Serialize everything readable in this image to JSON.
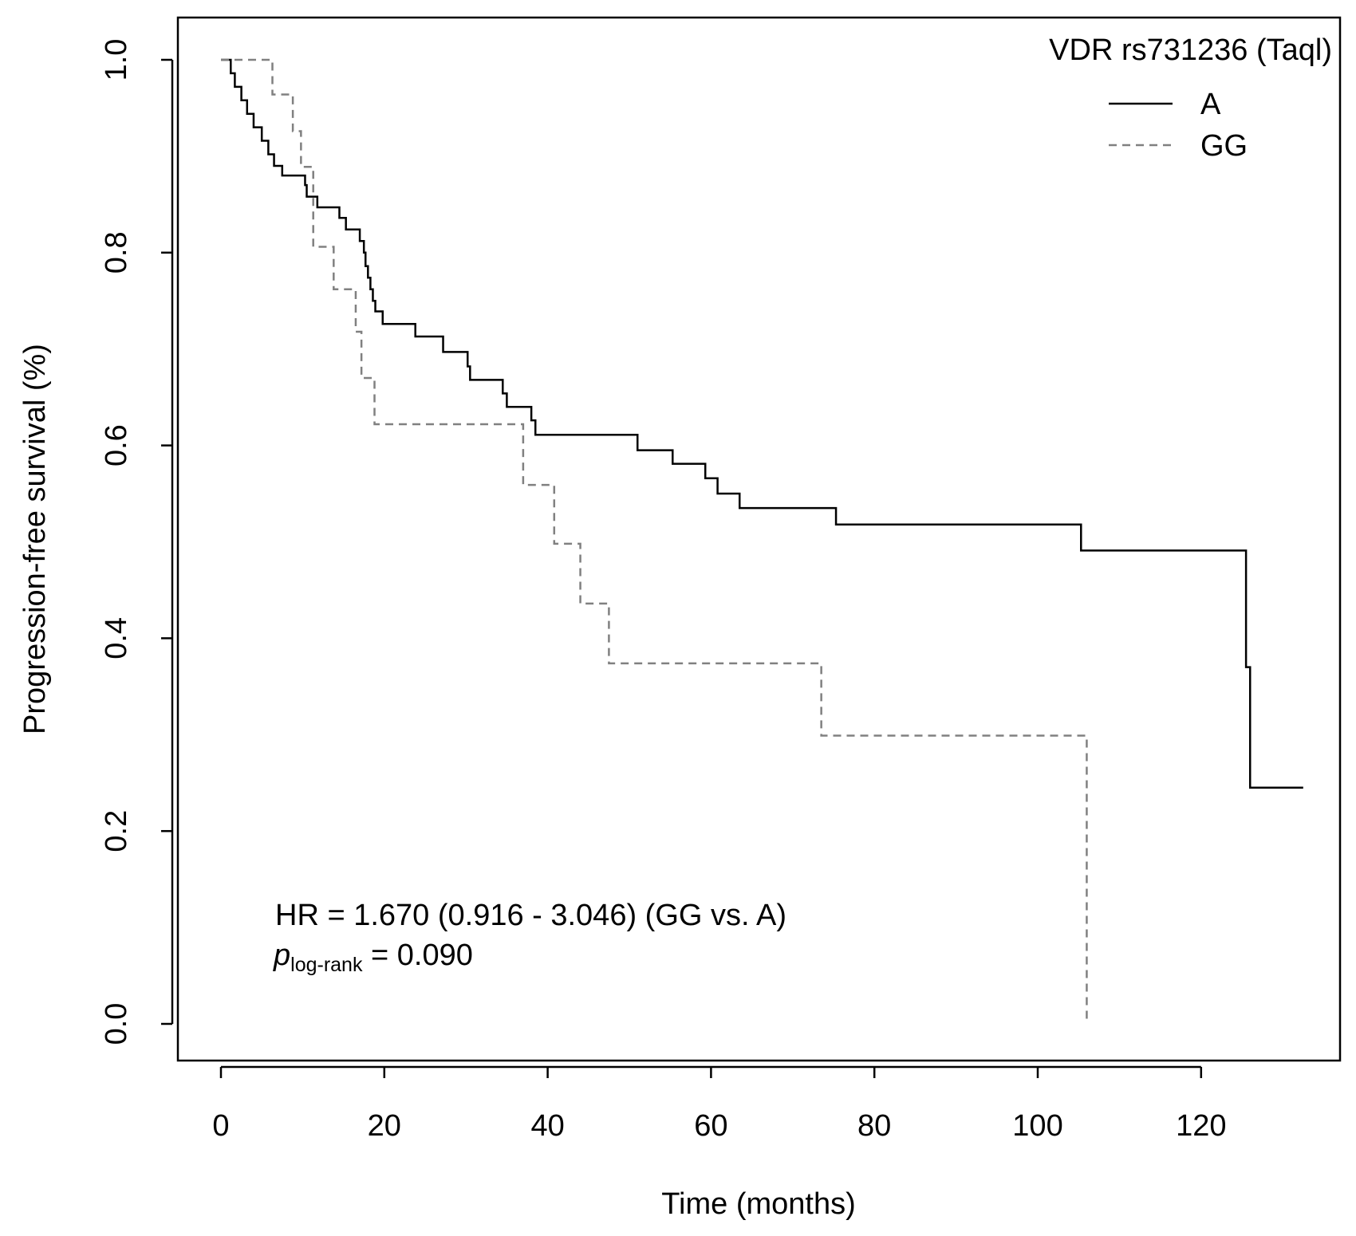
{
  "chart_data": {
    "type": "line",
    "step": true,
    "xlabel": "Time (months)",
    "ylabel": "Progression-free survival (%)",
    "xlim": [
      0,
      135
    ],
    "ylim": [
      0,
      1
    ],
    "xticks": [
      0,
      20,
      40,
      60,
      80,
      100,
      120
    ],
    "yticks": [
      0.0,
      0.2,
      0.4,
      0.6,
      0.8,
      1.0
    ],
    "xtick_labels": [
      "0",
      "20",
      "40",
      "60",
      "80",
      "100",
      "120"
    ],
    "ytick_labels": [
      "0.0",
      "0.2",
      "0.4",
      "0.6",
      "0.8",
      "1.0"
    ],
    "legend": {
      "title": "VDR rs731236 (Taql)",
      "placement": "top-right"
    },
    "annotation": {
      "hr": "HR = 1.670 (0.916 - 3.046) (GG vs. A)",
      "p_symbol": "p",
      "p_subscript": "log-rank",
      "p_value": " = 0.090"
    },
    "series": [
      {
        "name": "A",
        "style": "solid",
        "color": "#000000",
        "points": [
          [
            0,
            1.0
          ],
          [
            1.2,
            0.986
          ],
          [
            1.7,
            0.972
          ],
          [
            2.5,
            0.958
          ],
          [
            3.2,
            0.944
          ],
          [
            4.0,
            0.93
          ],
          [
            5.0,
            0.916
          ],
          [
            5.8,
            0.902
          ],
          [
            6.5,
            0.89
          ],
          [
            7.5,
            0.88
          ],
          [
            10.3,
            0.87
          ],
          [
            10.5,
            0.858
          ],
          [
            11.8,
            0.847
          ],
          [
            14.5,
            0.836
          ],
          [
            15.3,
            0.824
          ],
          [
            17.0,
            0.812
          ],
          [
            17.5,
            0.8
          ],
          [
            17.7,
            0.786
          ],
          [
            18.0,
            0.774
          ],
          [
            18.3,
            0.762
          ],
          [
            18.6,
            0.75
          ],
          [
            18.9,
            0.739
          ],
          [
            19.8,
            0.726
          ],
          [
            23.8,
            0.713
          ],
          [
            27.2,
            0.697
          ],
          [
            30.2,
            0.682
          ],
          [
            30.5,
            0.668
          ],
          [
            34.5,
            0.654
          ],
          [
            35.0,
            0.64
          ],
          [
            38.0,
            0.626
          ],
          [
            38.5,
            0.611
          ],
          [
            51.0,
            0.595
          ],
          [
            55.3,
            0.581
          ],
          [
            59.3,
            0.566
          ],
          [
            60.8,
            0.55
          ],
          [
            63.5,
            0.535
          ],
          [
            75.3,
            0.518
          ],
          [
            105.3,
            0.491
          ],
          [
            125.5,
            0.37
          ],
          [
            126.0,
            0.245
          ],
          [
            132.5,
            0.245
          ]
        ]
      },
      {
        "name": "GG",
        "style": "dashed",
        "color": "#808080",
        "points": [
          [
            0,
            1.0
          ],
          [
            6.3,
            0.964
          ],
          [
            8.8,
            0.926
          ],
          [
            9.8,
            0.889
          ],
          [
            11.3,
            0.806
          ],
          [
            13.8,
            0.762
          ],
          [
            16.5,
            0.718
          ],
          [
            17.2,
            0.67
          ],
          [
            18.8,
            0.622
          ],
          [
            37.0,
            0.559
          ],
          [
            40.8,
            0.498
          ],
          [
            44.0,
            0.436
          ],
          [
            47.5,
            0.374
          ],
          [
            73.5,
            0.299
          ],
          [
            106.0,
            0.0
          ]
        ]
      }
    ]
  }
}
